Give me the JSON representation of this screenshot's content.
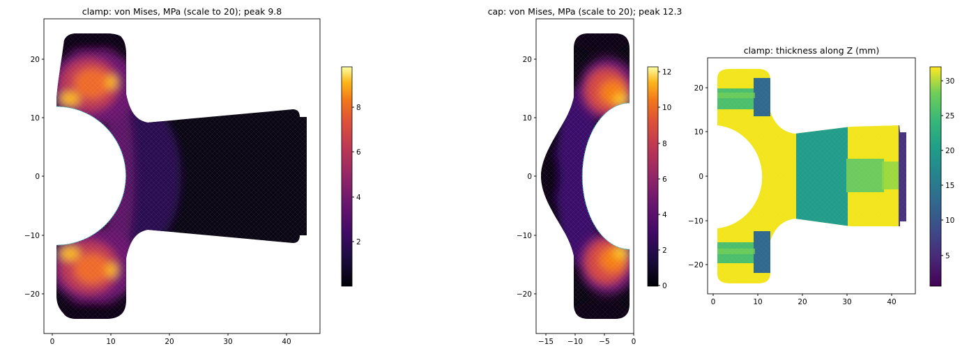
{
  "chart_data": [
    {
      "type": "heatmap",
      "title": "clamp: von Mises, MPa (scale to 20); peak 9.8",
      "xlim": [
        -1.4,
        45.6
      ],
      "ylim": [
        -26.7,
        26.5
      ],
      "xticks": [
        "0",
        "10",
        "20",
        "30",
        "40"
      ],
      "yticks": [
        "20",
        "10",
        "0",
        "−10",
        "−20"
      ],
      "colormap": "inferno",
      "colorbar": {
        "range": [
          0,
          9.8
        ],
        "ticks": [
          "2",
          "4",
          "6",
          "8"
        ]
      },
      "peak": 9.8,
      "stress_field_MPa": [
        {
          "region": "upper-left ear near hole",
          "x": 3,
          "y": 13,
          "value": 9.5
        },
        {
          "region": "upper ear",
          "x": 6,
          "y": 17,
          "value": 7.5
        },
        {
          "region": "lower-left ear near hole",
          "x": 3,
          "y": -13,
          "value": 9.5
        },
        {
          "region": "lower ear",
          "x": 6,
          "y": -17,
          "value": 7.5
        },
        {
          "region": "around hole",
          "x": 14,
          "y": 0,
          "value": 3
        },
        {
          "region": "arm",
          "x": 30,
          "y": 0,
          "value": 0.5
        },
        {
          "region": "tab ends",
          "x": 6,
          "y": 23,
          "value": 0.3
        }
      ]
    },
    {
      "type": "heatmap",
      "title": "cap: von Mises, MPa (scale to 20); peak 12.3",
      "xlim": [
        -16.9,
        0.1
      ],
      "ylim": [
        -26.7,
        26.5
      ],
      "xticks": [
        "−15",
        "−10",
        "−5",
        "0"
      ],
      "yticks": [
        "20",
        "10",
        "0",
        "−10",
        "−20"
      ],
      "colormap": "inferno",
      "colorbar": {
        "range": [
          0,
          12.3
        ],
        "ticks": [
          "0",
          "2",
          "4",
          "6",
          "8",
          "10",
          "12"
        ]
      },
      "peak": 12.3,
      "stress_field_MPa": [
        {
          "region": "upper junction",
          "x": -3,
          "y": 13,
          "value": 12
        },
        {
          "region": "upper ear",
          "x": -5,
          "y": 17,
          "value": 9
        },
        {
          "region": "lower junction",
          "x": -3,
          "y": -13,
          "value": 12
        },
        {
          "region": "lower ear",
          "x": -5,
          "y": -17,
          "value": 9
        },
        {
          "region": "arc middle",
          "x": -15,
          "y": 0,
          "value": 0.5
        },
        {
          "region": "tab ends",
          "x": -5,
          "y": 23,
          "value": 0.3
        }
      ]
    },
    {
      "type": "heatmap",
      "title": "clamp: thickness along Z (mm)",
      "xlim": [
        -1.1,
        45.2
      ],
      "ylim": [
        -26.2,
        24.5
      ],
      "xticks": [
        "0",
        "10",
        "20",
        "30",
        "40"
      ],
      "yticks": [
        "20",
        "10",
        "0",
        "−10",
        "−20"
      ],
      "colormap": "viridis",
      "colorbar": {
        "range": [
          0.5,
          32
        ],
        "ticks": [
          "5",
          "10",
          "15",
          "20",
          "25",
          "30"
        ]
      },
      "thickness_mm": [
        {
          "region": "ring",
          "value": 32
        },
        {
          "region": "ear bands",
          "value": 22
        },
        {
          "region": "ear notch",
          "value": 12
        },
        {
          "region": "arm 18-30",
          "value": 23
        },
        {
          "region": "arm 30-42",
          "value": 32
        },
        {
          "region": "arm center band",
          "value": 25
        },
        {
          "region": "arm tip",
          "value": 6
        }
      ]
    }
  ]
}
